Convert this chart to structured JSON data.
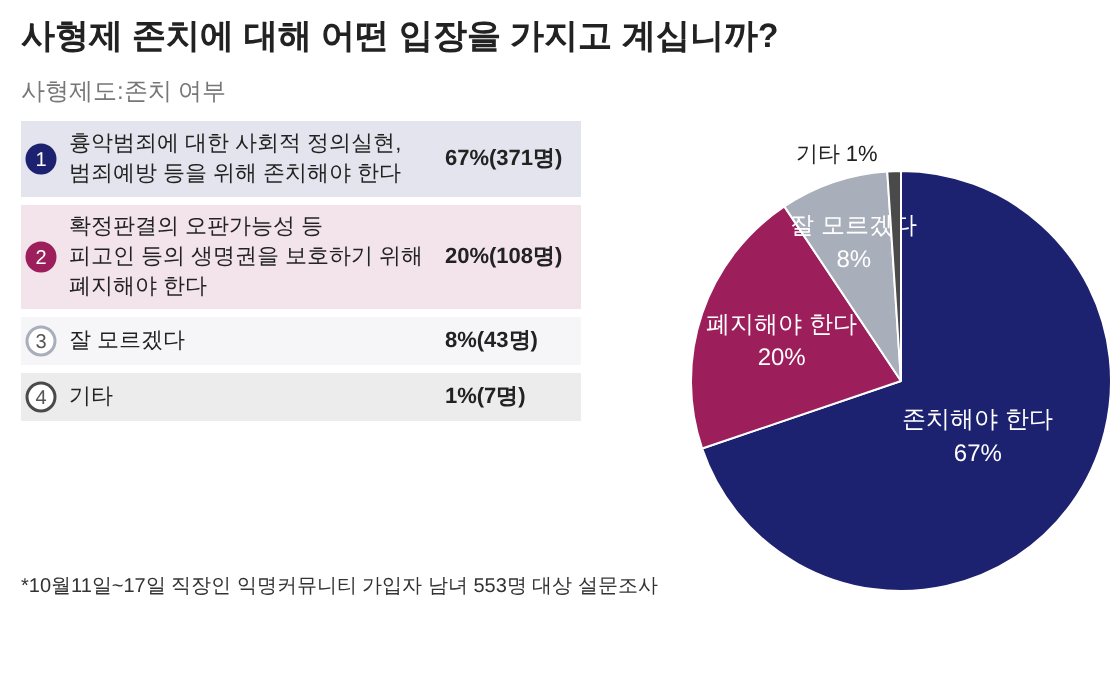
{
  "chart_data": {
    "type": "pie",
    "title": "사형제 존치에 대해 어떤 입장을 가지고 계십니까?",
    "subtitle": "사형제도:존치 여부",
    "categories": [
      "존치해야 한다",
      "폐지해야 한다",
      "잘 모르겠다",
      "기타"
    ],
    "values": [
      67,
      20,
      8,
      1
    ],
    "value_labels": [
      "67%",
      "20%",
      "8%",
      "1%"
    ],
    "colors": [
      "#1c2170",
      "#9c1f5c",
      "#a9aebb",
      "#4a4a4a"
    ],
    "annotations": [
      "1",
      "흉악범죄에 대한 사회적 정의실현,\n범죄예방 등을 위해 존치해야 한다",
      "67%(371명)",
      "2",
      "확정판결의 오판가능성 등\n피고인 등의 생명권을 보호하기 위해\n폐지해야 한다",
      "20%(108명)",
      "3",
      "잘 모르겠다",
      "8%(43명)",
      "4",
      "기타",
      "1%(7명)",
      "*10월11일~17일 직장인 익명커뮤니티 가입자 남녀 553명 대상 설문조사"
    ]
  }
}
